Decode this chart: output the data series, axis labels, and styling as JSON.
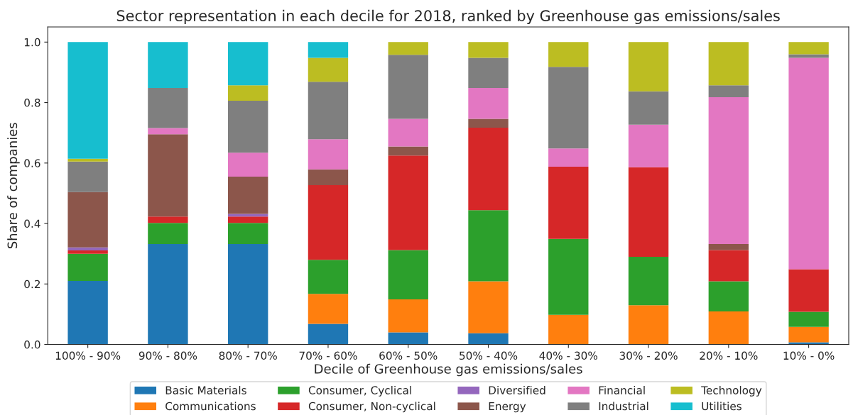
{
  "chart_data": {
    "type": "bar",
    "stacked": true,
    "title": "Sector representation in each decile for 2018, ranked by Greenhouse gas emissions/sales",
    "xlabel": "Decile of Greenhouse gas emissions/sales",
    "ylabel": "Share of companies",
    "categories": [
      "100% - 90%",
      "90% - 80%",
      "80% - 70%",
      "70% - 60%",
      "60% - 50%",
      "50% - 40%",
      "40% - 30%",
      "30% - 20%",
      "20% - 10%",
      "10% - 0%"
    ],
    "series": [
      {
        "name": "Basic Materials",
        "color": "#1f77b4",
        "values": [
          0.21,
          0.332,
          0.332,
          0.068,
          0.04,
          0.037,
          0,
          0,
          0,
          0.007
        ]
      },
      {
        "name": "Communications",
        "color": "#ff7f0e",
        "values": [
          0,
          0,
          0,
          0.099,
          0.109,
          0.172,
          0.098,
          0.13,
          0.109,
          0.051
        ]
      },
      {
        "name": "Consumer, Cyclical",
        "color": "#2ca02c",
        "values": [
          0.09,
          0.07,
          0.07,
          0.113,
          0.163,
          0.235,
          0.251,
          0.16,
          0.1,
          0.05
        ]
      },
      {
        "name": "Consumer, Non-cyclical",
        "color": "#d62728",
        "values": [
          0.011,
          0.021,
          0.021,
          0.247,
          0.313,
          0.273,
          0.239,
          0.296,
          0.103,
          0.141
        ]
      },
      {
        "name": "Diversified",
        "color": "#9467bd",
        "values": [
          0.01,
          0,
          0.009,
          0,
          0,
          0,
          0,
          0,
          0,
          0
        ]
      },
      {
        "name": "Energy",
        "color": "#8c564b",
        "values": [
          0.183,
          0.272,
          0.123,
          0.052,
          0.03,
          0.029,
          0,
          0,
          0.02,
          0
        ]
      },
      {
        "name": "Financial",
        "color": "#e377c2",
        "values": [
          0,
          0.021,
          0.079,
          0.1,
          0.091,
          0.102,
          0.06,
          0.141,
          0.486,
          0.699
        ]
      },
      {
        "name": "Industrial",
        "color": "#7f7f7f",
        "values": [
          0.101,
          0.132,
          0.172,
          0.19,
          0.212,
          0.1,
          0.27,
          0.11,
          0.039,
          0.012
        ]
      },
      {
        "name": "Technology",
        "color": "#bcbd22",
        "values": [
          0.009,
          0,
          0.051,
          0.079,
          0.042,
          0.052,
          0.082,
          0.163,
          0.143,
          0.04
        ]
      },
      {
        "name": "Utilities",
        "color": "#17becf",
        "values": [
          0.386,
          0.152,
          0.143,
          0.052,
          0,
          0,
          0,
          0,
          0,
          0
        ]
      }
    ],
    "ylim": [
      0,
      1.05
    ],
    "yticks": [
      {
        "value": 0,
        "label": "0.0"
      },
      {
        "value": 0.2,
        "label": "0.2"
      },
      {
        "value": 0.4,
        "label": "0.4"
      },
      {
        "value": 0.6,
        "label": "0.6"
      },
      {
        "value": 0.8,
        "label": "0.8"
      },
      {
        "value": 1,
        "label": "1.0"
      }
    ],
    "legend": "bottom"
  }
}
